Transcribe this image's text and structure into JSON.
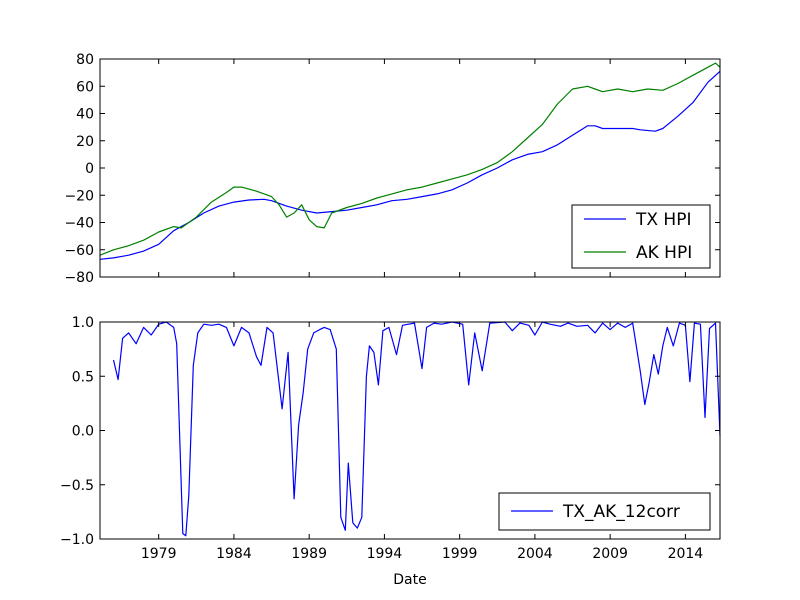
{
  "chart_data": [
    {
      "type": "line",
      "title": "",
      "xlabel": "",
      "ylabel": "",
      "xlim": [
        1975.1,
        2016.3
      ],
      "ylim": [
        -80,
        80
      ],
      "yticks": [
        "−80",
        "−60",
        "−40",
        "−20",
        "0",
        "20",
        "40",
        "60",
        "80"
      ],
      "ytick_values": [
        -80,
        -60,
        -40,
        -20,
        0,
        20,
        40,
        60,
        80
      ],
      "legend_position": "lower-right",
      "series": [
        {
          "name": "TX HPI",
          "color": "#0000ff",
          "points": [
            [
              1975.1,
              -67
            ],
            [
              1976.0,
              -66
            ],
            [
              1977.0,
              -64
            ],
            [
              1978.0,
              -61
            ],
            [
              1979.0,
              -56
            ],
            [
              1980.0,
              -46
            ],
            [
              1981.0,
              -40
            ],
            [
              1982.0,
              -33
            ],
            [
              1983.0,
              -28
            ],
            [
              1984.0,
              -25
            ],
            [
              1985.0,
              -23.5
            ],
            [
              1986.0,
              -23
            ],
            [
              1986.5,
              -24
            ],
            [
              1987.5,
              -28
            ],
            [
              1988.5,
              -31
            ],
            [
              1989.5,
              -33
            ],
            [
              1990.5,
              -32
            ],
            [
              1991.5,
              -31
            ],
            [
              1992.5,
              -29
            ],
            [
              1993.5,
              -27
            ],
            [
              1994.5,
              -24
            ],
            [
              1995.5,
              -23
            ],
            [
              1996.5,
              -21
            ],
            [
              1997.5,
              -19
            ],
            [
              1998.5,
              -16
            ],
            [
              1999.5,
              -11
            ],
            [
              2000.5,
              -5
            ],
            [
              2001.5,
              0
            ],
            [
              2002.5,
              6
            ],
            [
              2003.5,
              10
            ],
            [
              2004.5,
              12
            ],
            [
              2005.5,
              17
            ],
            [
              2006.5,
              24
            ],
            [
              2007.5,
              31
            ],
            [
              2008.0,
              31
            ],
            [
              2008.5,
              29
            ],
            [
              2009.5,
              29
            ],
            [
              2010.5,
              29
            ],
            [
              2011.0,
              28
            ],
            [
              2012.0,
              27
            ],
            [
              2012.5,
              29
            ],
            [
              2013.5,
              38
            ],
            [
              2014.5,
              48
            ],
            [
              2015.5,
              63
            ],
            [
              2016.3,
              71
            ]
          ]
        },
        {
          "name": "AK HPI",
          "color": "#008000",
          "points": [
            [
              1975.1,
              -64
            ],
            [
              1976.0,
              -60
            ],
            [
              1977.0,
              -57
            ],
            [
              1978.0,
              -53
            ],
            [
              1979.0,
              -47
            ],
            [
              1980.0,
              -43
            ],
            [
              1980.5,
              -44
            ],
            [
              1981.5,
              -36
            ],
            [
              1982.5,
              -25
            ],
            [
              1983.5,
              -18
            ],
            [
              1984.0,
              -14
            ],
            [
              1984.5,
              -14
            ],
            [
              1985.5,
              -17
            ],
            [
              1986.5,
              -21
            ],
            [
              1987.0,
              -27
            ],
            [
              1987.5,
              -36
            ],
            [
              1988.0,
              -33
            ],
            [
              1988.5,
              -27
            ],
            [
              1989.0,
              -38
            ],
            [
              1989.5,
              -43
            ],
            [
              1990.0,
              -44
            ],
            [
              1990.5,
              -33
            ],
            [
              1991.5,
              -29
            ],
            [
              1992.5,
              -26
            ],
            [
              1993.5,
              -22
            ],
            [
              1994.5,
              -19
            ],
            [
              1995.5,
              -16
            ],
            [
              1996.5,
              -14
            ],
            [
              1997.5,
              -11
            ],
            [
              1998.5,
              -8
            ],
            [
              1999.5,
              -5
            ],
            [
              2000.5,
              -1
            ],
            [
              2001.5,
              4
            ],
            [
              2002.5,
              12
            ],
            [
              2003.5,
              22
            ],
            [
              2004.5,
              32
            ],
            [
              2005.5,
              47
            ],
            [
              2006.5,
              58
            ],
            [
              2007.5,
              60
            ],
            [
              2008.0,
              58
            ],
            [
              2008.5,
              56
            ],
            [
              2009.5,
              58
            ],
            [
              2010.5,
              56
            ],
            [
              2011.5,
              58
            ],
            [
              2012.5,
              57
            ],
            [
              2013.5,
              62
            ],
            [
              2014.5,
              68
            ],
            [
              2015.5,
              74
            ],
            [
              2016.0,
              77
            ],
            [
              2016.3,
              74
            ]
          ]
        }
      ]
    },
    {
      "type": "line",
      "title": "",
      "xlabel": "Date",
      "ylabel": "",
      "xlim": [
        1975.1,
        2016.3
      ],
      "ylim": [
        -1.0,
        1.0
      ],
      "xticks": [
        "1979",
        "1984",
        "1989",
        "1994",
        "1999",
        "2004",
        "2009",
        "2014"
      ],
      "xtick_values": [
        1979,
        1984,
        1989,
        1994,
        1999,
        2004,
        2009,
        2014
      ],
      "yticks": [
        "−1.0",
        "−0.5",
        "0.0",
        "0.5",
        "1.0"
      ],
      "ytick_values": [
        -1.0,
        -0.5,
        0.0,
        0.5,
        1.0
      ],
      "legend_position": "lower-right",
      "series": [
        {
          "name": "TX_AK_12corr",
          "color": "#0000ff",
          "points": [
            [
              1976.0,
              0.65
            ],
            [
              1976.3,
              0.47
            ],
            [
              1976.6,
              0.85
            ],
            [
              1977.0,
              0.9
            ],
            [
              1977.5,
              0.8
            ],
            [
              1978.0,
              0.95
            ],
            [
              1978.5,
              0.88
            ],
            [
              1979.0,
              0.98
            ],
            [
              1979.5,
              1.0
            ],
            [
              1980.0,
              0.95
            ],
            [
              1980.2,
              0.8
            ],
            [
              1980.6,
              -0.95
            ],
            [
              1980.8,
              -0.97
            ],
            [
              1981.0,
              -0.6
            ],
            [
              1981.3,
              0.6
            ],
            [
              1981.6,
              0.9
            ],
            [
              1982.0,
              0.98
            ],
            [
              1982.5,
              0.97
            ],
            [
              1983.0,
              0.98
            ],
            [
              1983.5,
              0.95
            ],
            [
              1984.0,
              0.78
            ],
            [
              1984.5,
              0.95
            ],
            [
              1985.0,
              0.9
            ],
            [
              1985.5,
              0.68
            ],
            [
              1985.8,
              0.6
            ],
            [
              1986.2,
              0.95
            ],
            [
              1986.6,
              0.9
            ],
            [
              1987.2,
              0.2
            ],
            [
              1987.6,
              0.72
            ],
            [
              1988.0,
              -0.63
            ],
            [
              1988.3,
              0.05
            ],
            [
              1988.6,
              0.35
            ],
            [
              1988.9,
              0.75
            ],
            [
              1989.3,
              0.9
            ],
            [
              1989.7,
              0.93
            ],
            [
              1990.0,
              0.95
            ],
            [
              1990.4,
              0.93
            ],
            [
              1990.8,
              0.75
            ],
            [
              1991.1,
              -0.8
            ],
            [
              1991.4,
              -0.92
            ],
            [
              1991.6,
              -0.3
            ],
            [
              1991.9,
              -0.85
            ],
            [
              1992.2,
              -0.9
            ],
            [
              1992.5,
              -0.8
            ],
            [
              1992.8,
              0.5
            ],
            [
              1993.0,
              0.78
            ],
            [
              1993.3,
              0.72
            ],
            [
              1993.6,
              0.42
            ],
            [
              1993.9,
              0.92
            ],
            [
              1994.3,
              0.95
            ],
            [
              1994.8,
              0.7
            ],
            [
              1995.2,
              0.97
            ],
            [
              1995.6,
              0.98
            ],
            [
              1996.0,
              0.99
            ],
            [
              1996.5,
              0.57
            ],
            [
              1996.8,
              0.95
            ],
            [
              1997.3,
              0.99
            ],
            [
              1997.8,
              0.98
            ],
            [
              1998.5,
              1.0
            ],
            [
              1999.2,
              0.98
            ],
            [
              1999.6,
              0.42
            ],
            [
              2000.0,
              0.9
            ],
            [
              2000.5,
              0.55
            ],
            [
              2001.0,
              0.99
            ],
            [
              2002.0,
              1.0
            ],
            [
              2002.5,
              0.92
            ],
            [
              2003.0,
              0.99
            ],
            [
              2003.6,
              0.97
            ],
            [
              2004.0,
              0.88
            ],
            [
              2004.5,
              1.0
            ],
            [
              2005.0,
              0.98
            ],
            [
              2005.7,
              0.96
            ],
            [
              2006.2,
              0.99
            ],
            [
              2006.8,
              0.96
            ],
            [
              2007.5,
              0.97
            ],
            [
              2008.0,
              0.9
            ],
            [
              2008.5,
              0.99
            ],
            [
              2009.0,
              0.93
            ],
            [
              2009.5,
              0.99
            ],
            [
              2010.0,
              0.95
            ],
            [
              2010.5,
              0.99
            ],
            [
              2011.0,
              0.55
            ],
            [
              2011.3,
              0.24
            ],
            [
              2011.6,
              0.45
            ],
            [
              2011.9,
              0.7
            ],
            [
              2012.2,
              0.52
            ],
            [
              2012.5,
              0.78
            ],
            [
              2012.8,
              0.95
            ],
            [
              2013.2,
              0.78
            ],
            [
              2013.6,
              0.99
            ],
            [
              2014.0,
              0.97
            ],
            [
              2014.3,
              0.45
            ],
            [
              2014.6,
              0.99
            ],
            [
              2015.0,
              0.98
            ],
            [
              2015.3,
              0.12
            ],
            [
              2015.6,
              0.94
            ],
            [
              2016.0,
              0.99
            ],
            [
              2016.3,
              -0.05
            ]
          ]
        }
      ]
    }
  ]
}
